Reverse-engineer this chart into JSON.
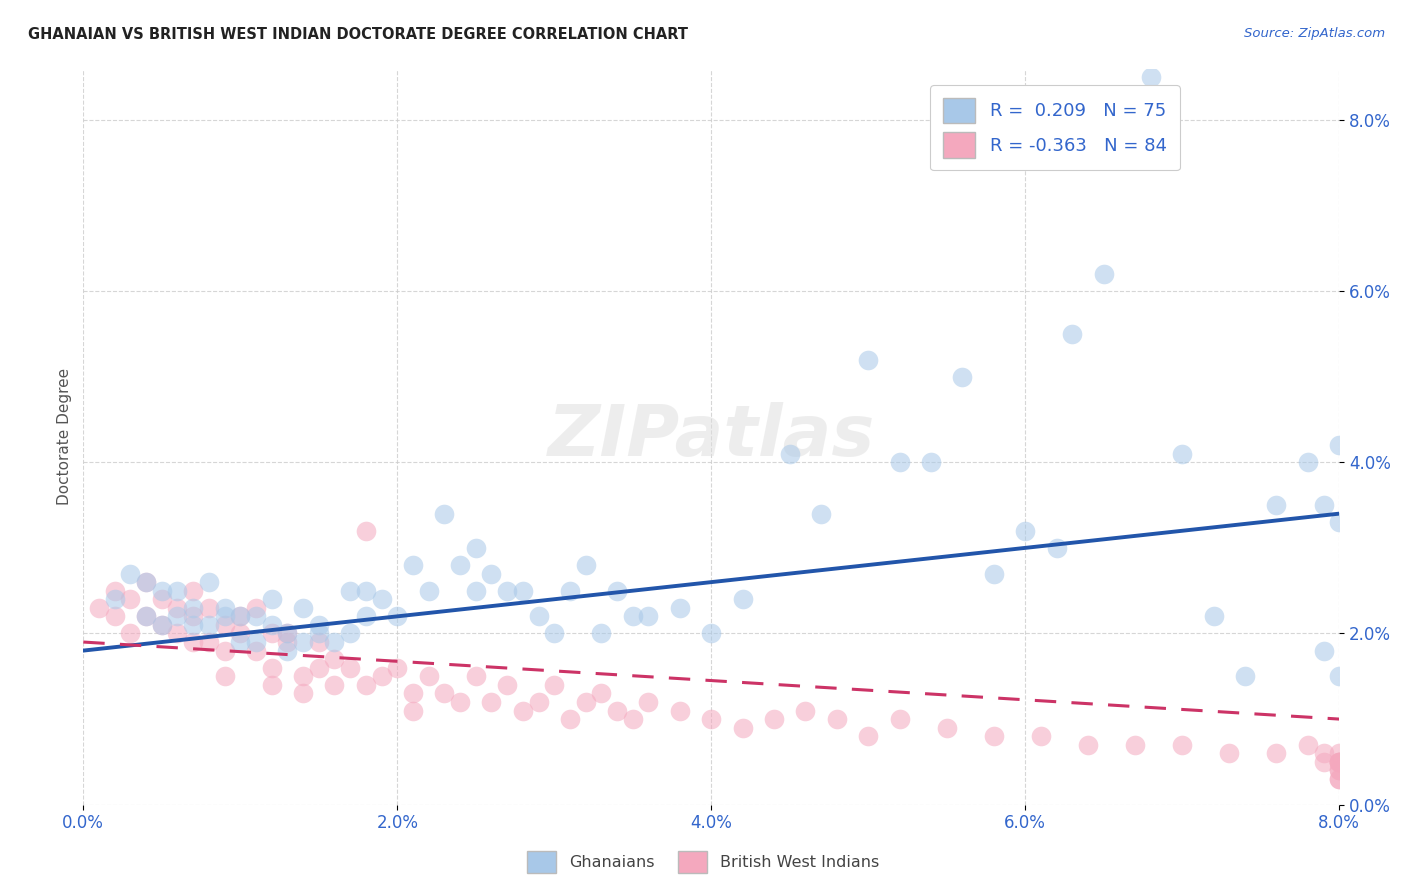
{
  "title": "GHANAIAN VS BRITISH WEST INDIAN DOCTORATE DEGREE CORRELATION CHART",
  "source": "Source: ZipAtlas.com",
  "ylabel": "Doctorate Degree",
  "x_min": 0.0,
  "x_max": 0.08,
  "y_min": 0.0,
  "y_max": 0.086,
  "ghanaian_R": 0.209,
  "ghanaian_N": 75,
  "bwi_R": -0.363,
  "bwi_N": 84,
  "ghanaian_color": "#a8c8e8",
  "bwi_color": "#f4a8be",
  "trend_ghanaian_color": "#2255aa",
  "trend_bwi_color": "#cc3366",
  "trend_ghanaian_x0": 0.0,
  "trend_ghanaian_y0": 0.018,
  "trend_ghanaian_x1": 0.08,
  "trend_ghanaian_y1": 0.034,
  "trend_bwi_x0": 0.0,
  "trend_bwi_y0": 0.019,
  "trend_bwi_x1": 0.08,
  "trend_bwi_y1": 0.01,
  "watermark_text": "ZIPatlas",
  "legend_entries": [
    "Ghanaians",
    "British West Indians"
  ],
  "ghanaian_x": [
    0.002,
    0.003,
    0.004,
    0.004,
    0.005,
    0.005,
    0.006,
    0.006,
    0.007,
    0.007,
    0.008,
    0.008,
    0.009,
    0.009,
    0.01,
    0.01,
    0.011,
    0.011,
    0.012,
    0.012,
    0.013,
    0.013,
    0.014,
    0.014,
    0.015,
    0.015,
    0.016,
    0.017,
    0.017,
    0.018,
    0.018,
    0.019,
    0.02,
    0.021,
    0.022,
    0.023,
    0.024,
    0.025,
    0.025,
    0.026,
    0.027,
    0.028,
    0.029,
    0.03,
    0.031,
    0.032,
    0.033,
    0.034,
    0.035,
    0.036,
    0.038,
    0.04,
    0.042,
    0.045,
    0.047,
    0.05,
    0.052,
    0.054,
    0.056,
    0.058,
    0.06,
    0.062,
    0.063,
    0.065,
    0.068,
    0.07,
    0.072,
    0.074,
    0.076,
    0.078,
    0.079,
    0.079,
    0.08,
    0.08,
    0.08
  ],
  "ghanaian_y": [
    0.024,
    0.027,
    0.022,
    0.026,
    0.025,
    0.021,
    0.025,
    0.022,
    0.023,
    0.021,
    0.026,
    0.021,
    0.023,
    0.022,
    0.022,
    0.019,
    0.022,
    0.019,
    0.021,
    0.024,
    0.02,
    0.018,
    0.023,
    0.019,
    0.021,
    0.02,
    0.019,
    0.025,
    0.02,
    0.025,
    0.022,
    0.024,
    0.022,
    0.028,
    0.025,
    0.034,
    0.028,
    0.025,
    0.03,
    0.027,
    0.025,
    0.025,
    0.022,
    0.02,
    0.025,
    0.028,
    0.02,
    0.025,
    0.022,
    0.022,
    0.023,
    0.02,
    0.024,
    0.041,
    0.034,
    0.052,
    0.04,
    0.04,
    0.05,
    0.027,
    0.032,
    0.03,
    0.055,
    0.062,
    0.085,
    0.041,
    0.022,
    0.015,
    0.035,
    0.04,
    0.018,
    0.035,
    0.033,
    0.042,
    0.015
  ],
  "bwi_x": [
    0.001,
    0.002,
    0.002,
    0.003,
    0.003,
    0.004,
    0.004,
    0.005,
    0.005,
    0.006,
    0.006,
    0.007,
    0.007,
    0.007,
    0.008,
    0.008,
    0.009,
    0.009,
    0.009,
    0.01,
    0.01,
    0.011,
    0.011,
    0.012,
    0.012,
    0.012,
    0.013,
    0.013,
    0.014,
    0.014,
    0.015,
    0.015,
    0.016,
    0.016,
    0.017,
    0.018,
    0.018,
    0.019,
    0.02,
    0.021,
    0.021,
    0.022,
    0.023,
    0.024,
    0.025,
    0.026,
    0.027,
    0.028,
    0.029,
    0.03,
    0.031,
    0.032,
    0.033,
    0.034,
    0.035,
    0.036,
    0.038,
    0.04,
    0.042,
    0.044,
    0.046,
    0.048,
    0.05,
    0.052,
    0.055,
    0.058,
    0.061,
    0.064,
    0.067,
    0.07,
    0.073,
    0.076,
    0.078,
    0.079,
    0.079,
    0.08,
    0.08,
    0.08,
    0.08,
    0.08,
    0.08,
    0.08,
    0.08,
    0.08
  ],
  "bwi_y": [
    0.023,
    0.025,
    0.022,
    0.024,
    0.02,
    0.022,
    0.026,
    0.024,
    0.021,
    0.023,
    0.02,
    0.025,
    0.022,
    0.019,
    0.023,
    0.019,
    0.021,
    0.018,
    0.015,
    0.022,
    0.02,
    0.023,
    0.018,
    0.02,
    0.016,
    0.014,
    0.019,
    0.02,
    0.015,
    0.013,
    0.019,
    0.016,
    0.017,
    0.014,
    0.016,
    0.032,
    0.014,
    0.015,
    0.016,
    0.013,
    0.011,
    0.015,
    0.013,
    0.012,
    0.015,
    0.012,
    0.014,
    0.011,
    0.012,
    0.014,
    0.01,
    0.012,
    0.013,
    0.011,
    0.01,
    0.012,
    0.011,
    0.01,
    0.009,
    0.01,
    0.011,
    0.01,
    0.008,
    0.01,
    0.009,
    0.008,
    0.008,
    0.007,
    0.007,
    0.007,
    0.006,
    0.006,
    0.007,
    0.005,
    0.006,
    0.005,
    0.005,
    0.006,
    0.004,
    0.005,
    0.003,
    0.004,
    0.005,
    0.003
  ]
}
